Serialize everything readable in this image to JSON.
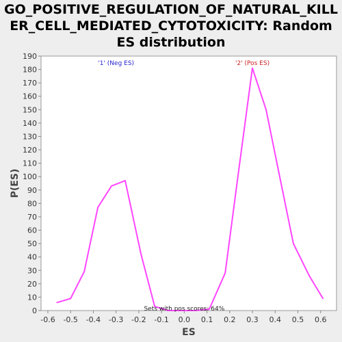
{
  "chart_data": {
    "type": "line",
    "title_lines": [
      "GO_POSITIVE_REGULATION_OF_NATURAL_KILL",
      "ER_CELL_MEDIATED_CYTOTOXICITY: Random",
      "ES distribution"
    ],
    "xlabel": "ES",
    "ylabel": "P(ES)",
    "xlim": [
      -0.63,
      0.67
    ],
    "ylim": [
      0,
      190
    ],
    "xticks": [
      -0.6,
      -0.5,
      -0.4,
      -0.3,
      -0.2,
      -0.1,
      0.0,
      0.1,
      0.2,
      0.3,
      0.4,
      0.5,
      0.6
    ],
    "xtick_labels": [
      "-0.6",
      "-0.5",
      "-0.4",
      "-0.3",
      "-0.2",
      "-0.1",
      "0.0",
      "0.1",
      "0.2",
      "0.3",
      "0.4",
      "0.5",
      "0.6"
    ],
    "yticks": [
      0,
      10,
      20,
      30,
      40,
      50,
      60,
      70,
      80,
      90,
      100,
      110,
      120,
      130,
      140,
      150,
      160,
      170,
      180,
      190
    ],
    "ytick_labels": [
      "0",
      "10",
      "20",
      "30",
      "40",
      "50",
      "60",
      "70",
      "80",
      "90",
      "100",
      "110",
      "120",
      "130",
      "140",
      "150",
      "160",
      "170",
      "180",
      "190"
    ],
    "grid": false,
    "series": [
      {
        "color": "#ff44ff",
        "x": [
          -0.56,
          -0.5,
          -0.44,
          -0.38,
          -0.32,
          -0.26,
          -0.19,
          -0.13,
          -0.07,
          0.05,
          0.11,
          0.18,
          0.24,
          0.3,
          0.36,
          0.42,
          0.48,
          0.55,
          0.61
        ],
        "y": [
          6,
          9,
          29,
          77,
          93,
          97,
          42,
          3,
          0,
          0,
          1,
          28,
          105,
          181,
          150,
          100,
          50,
          26,
          9
        ]
      }
    ],
    "annotations": [
      {
        "text": "'1' (Neg ES)",
        "x": -0.3,
        "y": 185,
        "color": "#2222cc"
      },
      {
        "text": "'2' (Pos ES)",
        "x": 0.3,
        "y": 185,
        "color": "#cc2222"
      },
      {
        "text": "Sets with pos scores: 64%",
        "x": 0.0,
        "y": 1.5,
        "color": "#222222"
      }
    ]
  }
}
